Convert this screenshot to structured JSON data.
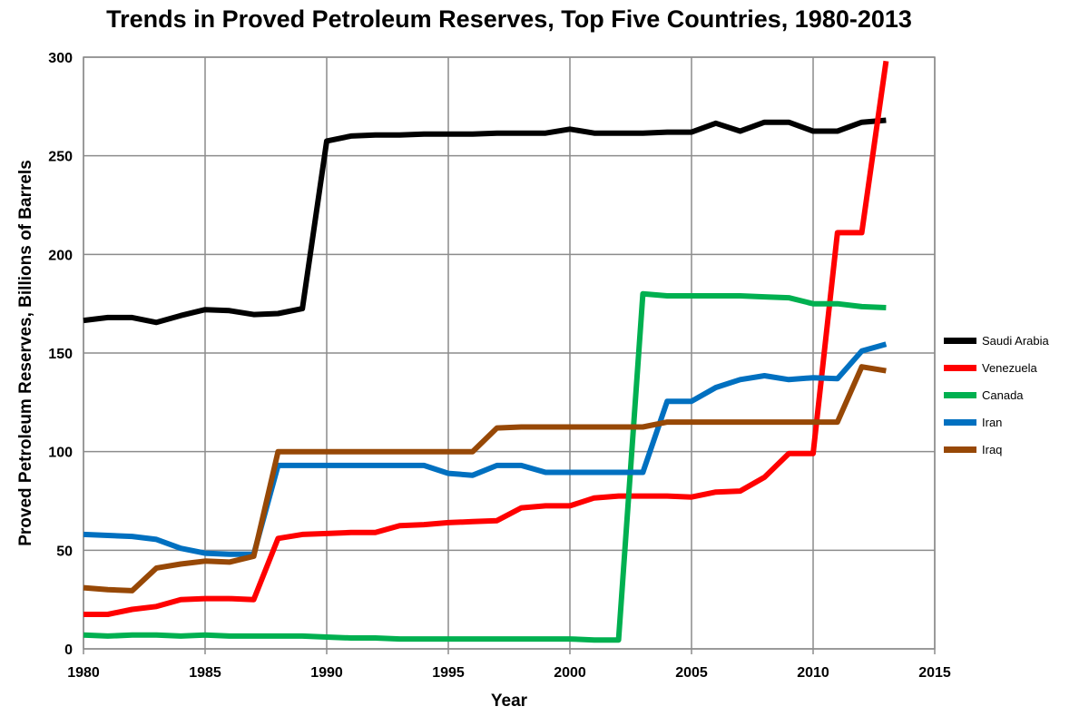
{
  "chart_data": {
    "type": "line",
    "title": "Trends in Proved Petroleum Reserves, Top Five Countries, 1980-2013",
    "xlabel": "Year",
    "ylabel": "Proved Petroleum Reserves, Billions of Barrels",
    "xlim": [
      1980,
      2015
    ],
    "ylim": [
      0,
      300
    ],
    "xticks": [
      1980,
      1985,
      1990,
      1995,
      2000,
      2005,
      2010,
      2015
    ],
    "yticks": [
      0,
      50,
      100,
      150,
      200,
      250,
      300
    ],
    "grid": true,
    "legend_position": "right",
    "x": [
      1980,
      1981,
      1982,
      1983,
      1984,
      1985,
      1986,
      1987,
      1988,
      1989,
      1990,
      1991,
      1992,
      1993,
      1994,
      1995,
      1996,
      1997,
      1998,
      1999,
      2000,
      2001,
      2002,
      2003,
      2004,
      2005,
      2006,
      2007,
      2008,
      2009,
      2010,
      2011,
      2012,
      2013
    ],
    "series": [
      {
        "name": "Saudi Arabia",
        "color": "#000000",
        "values": [
          166.5,
          168,
          168,
          165.5,
          169,
          172,
          171.5,
          169.5,
          170,
          172.5,
          257.5,
          260,
          260.5,
          260.5,
          261,
          261,
          261,
          261.5,
          261.5,
          261.5,
          263.5,
          261.5,
          261.5,
          261.5,
          262,
          262,
          266.5,
          262.5,
          267,
          267,
          262.5,
          262.5,
          267,
          268
        ]
      },
      {
        "name": "Venezuela",
        "color": "#ff0000",
        "values": [
          17.5,
          17.5,
          20,
          21.5,
          25,
          25.5,
          25.5,
          25,
          56,
          58,
          58.5,
          59,
          59,
          62.5,
          63,
          64,
          64.5,
          65,
          71.5,
          72.5,
          72.5,
          76.5,
          77.5,
          77.5,
          77.5,
          77,
          79.5,
          80,
          87,
          99,
          99,
          211,
          211,
          298
        ]
      },
      {
        "name": "Canada",
        "color": "#00b050",
        "values": [
          7,
          6.5,
          7,
          7,
          6.5,
          7,
          6.5,
          6.5,
          6.5,
          6.5,
          6,
          5.5,
          5.5,
          5,
          5,
          5,
          5,
          5,
          5,
          5,
          5,
          4.5,
          4.5,
          180,
          179,
          179,
          179,
          179,
          178.5,
          178,
          175,
          175,
          173.5,
          173
        ]
      },
      {
        "name": "Iran",
        "color": "#0070c0",
        "values": [
          58,
          57.5,
          57,
          55.5,
          51,
          48.5,
          48,
          48,
          93,
          93,
          93,
          93,
          93,
          93,
          93,
          89,
          88,
          93,
          93,
          89.5,
          89.5,
          89.5,
          89.5,
          89.5,
          125.5,
          125.5,
          132.5,
          136.5,
          138.5,
          136.5,
          137.5,
          137,
          151,
          154.5
        ]
      },
      {
        "name": "Iraq",
        "color": "#974806",
        "values": [
          31,
          30,
          29.5,
          41,
          43,
          44.5,
          44,
          47,
          100,
          100,
          100,
          100,
          100,
          100,
          100,
          100,
          100,
          112,
          112.5,
          112.5,
          112.5,
          112.5,
          112.5,
          112.5,
          115,
          115,
          115,
          115,
          115,
          115,
          115,
          115,
          143,
          141
        ]
      }
    ]
  }
}
